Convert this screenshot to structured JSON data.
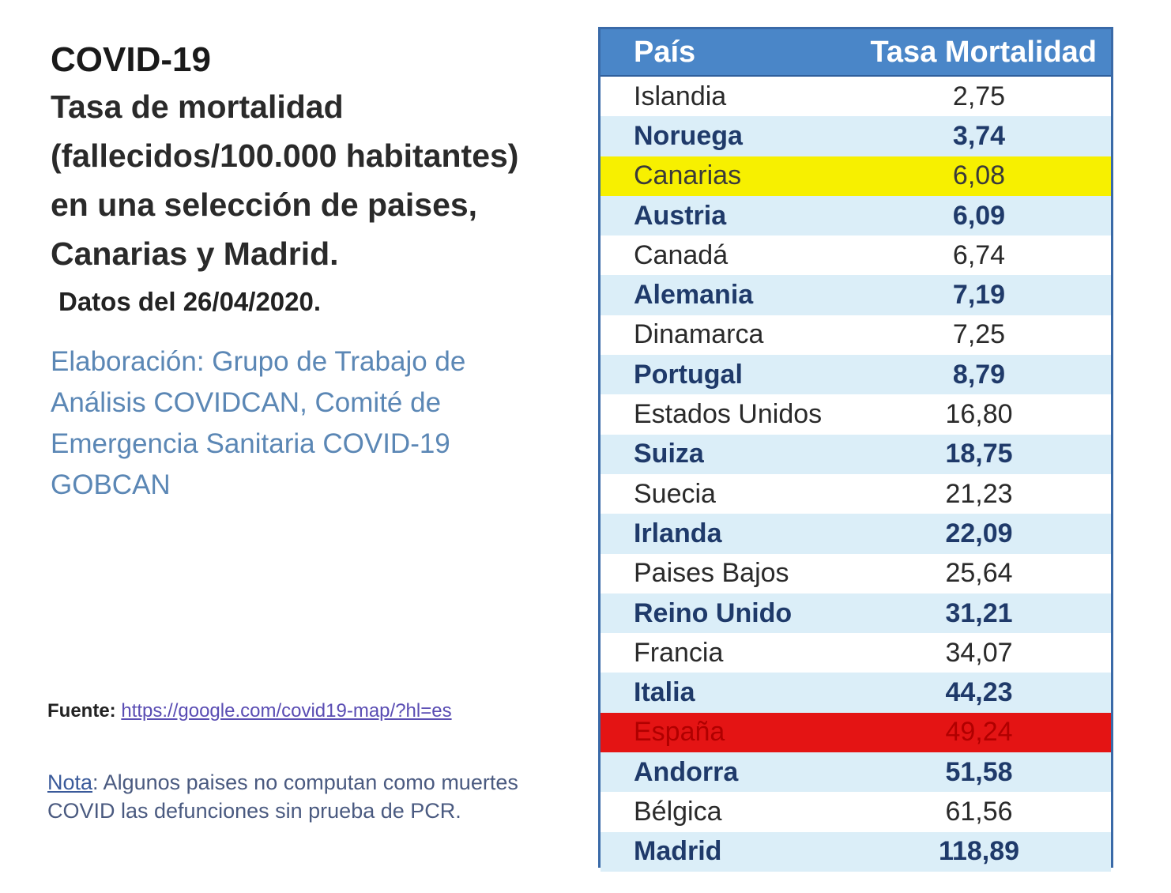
{
  "info": {
    "title": "COVID-19",
    "subtitle_lines": [
      "Tasa de mortalidad",
      "(fallecidos/100.000 habitantes)",
      "en una selección de paises,",
      "Canarias y Madrid."
    ],
    "date": "Datos del 26/04/2020.",
    "credit_lines": [
      "Elaboración: Grupo de Trabajo de",
      "Análisis COVIDCAN, Comité de",
      "Emergencia Sanitaria COVID-19",
      "GOBCAN"
    ],
    "source_label": "Fuente:",
    "source_link": "https://google.com/covid19-map/?hl=es",
    "note_label": "Nota",
    "note_text": ": Algunos paises no computan como muertes COVID las defunciones sin prueba de PCR."
  },
  "colors": {
    "header_bg": "#4a86c8",
    "alt_row_bg": "#dbeef8",
    "highlight_canarias": "#f7f000",
    "highlight_espana": "#e41414"
  },
  "chart_data": {
    "type": "table",
    "columns": [
      "País",
      "Tasa Mortalidad"
    ],
    "rows": [
      {
        "pais": "Islandia",
        "tasa": "2,75",
        "style": "plain"
      },
      {
        "pais": "Noruega",
        "tasa": "3,74",
        "style": "alt"
      },
      {
        "pais": "Canarias",
        "tasa": "6,08",
        "style": "hl-yellow"
      },
      {
        "pais": "Austria",
        "tasa": "6,09",
        "style": "alt"
      },
      {
        "pais": "Canadá",
        "tasa": "6,74",
        "style": "plain"
      },
      {
        "pais": "Alemania",
        "tasa": "7,19",
        "style": "alt"
      },
      {
        "pais": "Dinamarca",
        "tasa": "7,25",
        "style": "plain"
      },
      {
        "pais": "Portugal",
        "tasa": "8,79",
        "style": "alt"
      },
      {
        "pais": "Estados Unidos",
        "tasa": "16,80",
        "style": "plain"
      },
      {
        "pais": "Suiza",
        "tasa": "18,75",
        "style": "alt"
      },
      {
        "pais": "Suecia",
        "tasa": "21,23",
        "style": "plain"
      },
      {
        "pais": "Irlanda",
        "tasa": "22,09",
        "style": "alt"
      },
      {
        "pais": "Paises Bajos",
        "tasa": "25,64",
        "style": "plain"
      },
      {
        "pais": "Reino Unido",
        "tasa": "31,21",
        "style": "alt"
      },
      {
        "pais": "Francia",
        "tasa": "34,07",
        "style": "plain"
      },
      {
        "pais": "Italia",
        "tasa": "44,23",
        "style": "alt"
      },
      {
        "pais": "España",
        "tasa": "49,24",
        "style": "hl-red"
      },
      {
        "pais": "Andorra",
        "tasa": "51,58",
        "style": "alt"
      },
      {
        "pais": "Bélgica",
        "tasa": "61,56",
        "style": "plain"
      },
      {
        "pais": "Madrid",
        "tasa": "118,89",
        "style": "alt"
      }
    ]
  }
}
